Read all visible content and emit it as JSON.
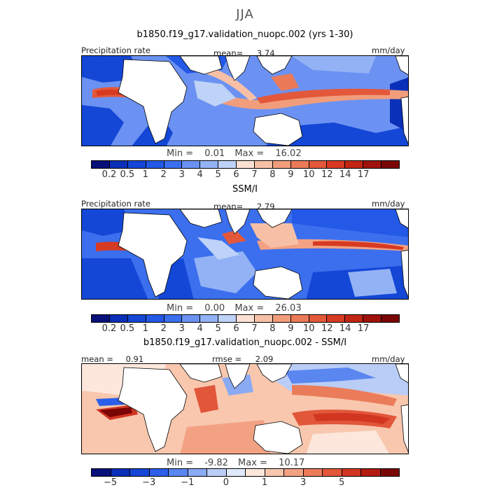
{
  "season": "JJA",
  "panels": [
    {
      "title": "b1850.f19_g17.validation_nuopc.002 (yrs 1-30)",
      "left_label": "Precipitation rate",
      "center_label": "mean=",
      "center_value": "3.74",
      "units": "mm/day",
      "min_label": "Min =",
      "min_value": "0.01",
      "max_label": "Max =",
      "max_value": "16.02"
    },
    {
      "title": "SSM/I",
      "left_label": "Precipitation rate",
      "center_label": "mean=",
      "center_value": "2.79",
      "units": "mm/day",
      "min_label": "Min =",
      "min_value": "0.00",
      "max_label": "Max =",
      "max_value": "26.03"
    },
    {
      "title": "b1850.f19_g17.validation_nuopc.002 - SSM/I",
      "left_label": "mean =",
      "left_value": "0.91",
      "center_label": "rmse =",
      "center_value": "2.09",
      "units": "mm/day",
      "min_label": "Min =",
      "min_value": "-9.82",
      "max_label": "Max =",
      "max_value": "10.17"
    }
  ],
  "colorbar_abs": {
    "colors": [
      "#08107a",
      "#0a2fb8",
      "#1447d6",
      "#2458e6",
      "#3b6fee",
      "#6b92f2",
      "#93b2f5",
      "#bfd2f7",
      "#fbe1d4",
      "#f7c0a6",
      "#f19d7c",
      "#ea7a58",
      "#e3583a",
      "#d73a22",
      "#c22514",
      "#a0120c",
      "#7a0505"
    ],
    "ticks": [
      "0.2",
      "0.5",
      "1",
      "2",
      "3",
      "4",
      "5",
      "6",
      "7",
      "8",
      "9",
      "10",
      "12",
      "14",
      "17"
    ]
  },
  "colorbar_diff": {
    "colors": [
      "#08107a",
      "#0a2fb8",
      "#1447d6",
      "#2b5fea",
      "#5a86f0",
      "#8aaaf4",
      "#b9cdf7",
      "#e0eafb",
      "#fde7dc",
      "#f8c7ae",
      "#f2a283",
      "#eb7c5a",
      "#e2563a",
      "#d23621",
      "#b41b10",
      "#7a0505"
    ],
    "ticks": [
      "−5",
      "−3",
      "−1",
      "0",
      "1",
      "3",
      "5"
    ]
  }
}
